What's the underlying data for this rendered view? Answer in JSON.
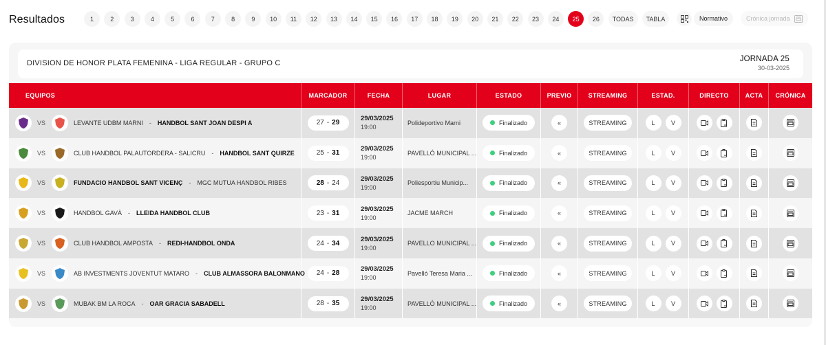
{
  "header": {
    "title": "Resultados",
    "rounds": [
      "1",
      "2",
      "3",
      "4",
      "5",
      "6",
      "7",
      "8",
      "9",
      "10",
      "11",
      "12",
      "13",
      "14",
      "15",
      "16",
      "17",
      "18",
      "19",
      "20",
      "21",
      "22",
      "23",
      "24",
      "25",
      "26"
    ],
    "active_round": "25",
    "todas_label": "TODAS",
    "tabla_label": "TABLA",
    "normativo_label": "Normativo",
    "cronica_jornada_label": "Crónica jornada"
  },
  "competition": {
    "title": "DIVISION DE HONOR PLATA FEMENINA - LIGA REGULAR - GRUPO C",
    "jornada_label": "JORNADA 25",
    "jornada_date": "30-03-2025"
  },
  "colors": {
    "accent": "#e3001b",
    "status_finished": "#3ecf7f"
  },
  "table": {
    "columns": [
      "EQUIPOS",
      "MARCADOR",
      "FECHA",
      "LUGAR",
      "ESTADO",
      "PREVIO",
      "STREAMING",
      "ESTAD.",
      "DIRECTO",
      "ACTA",
      "CRÓNICA"
    ],
    "vs_label": "VS",
    "dash": "-",
    "streaming_label": "STREAMING",
    "local_label": "L",
    "visitor_label": "V",
    "rows": [
      {
        "home": "LEVANTE UDBM MARNI",
        "away": "HANDBOL SANT JOAN DESPI A",
        "home_score": "27",
        "away_score": "29",
        "winner": "away",
        "date": "29/03/2025",
        "time": "19:00",
        "place": "Polideportivo Marni",
        "status": "Finalizado",
        "home_crest_color": "#6a2c8a",
        "away_crest_color": "#e8544a"
      },
      {
        "home": "CLUB HANDBOL PALAUTORDERA - SALICRU",
        "away": "HANDBOL SANT QUIRZE",
        "home_score": "25",
        "away_score": "31",
        "winner": "away",
        "date": "29/03/2025",
        "time": "19:00",
        "place": "PAVELLÓ MUNICIPAL ...",
        "status": "Finalizado",
        "home_crest_color": "#4a8a3c",
        "away_crest_color": "#9a6a2a"
      },
      {
        "home": "FUNDACIO HANDBOL SANT VICENÇ",
        "away": "MGC MUTUA HANDBOL RIBES",
        "home_score": "28",
        "away_score": "24",
        "winner": "home",
        "date": "29/03/2025",
        "time": "19:00",
        "place": "Poliesportiu Municip...",
        "status": "Finalizado",
        "home_crest_color": "#e8b818",
        "away_crest_color": "#c8b020"
      },
      {
        "home": "HANDBOL GAVÀ",
        "away": "LLEIDA HANDBOL CLUB",
        "home_score": "23",
        "away_score": "31",
        "winner": "away",
        "date": "29/03/2025",
        "time": "19:00",
        "place": "JACME MARCH",
        "status": "Finalizado",
        "home_crest_color": "#d8a020",
        "away_crest_color": "#1a1a1a"
      },
      {
        "home": "CLUB HANDBOL AMPOSTA",
        "away": "REDI-HANDBOL ONDA",
        "home_score": "24",
        "away_score": "34",
        "winner": "away",
        "date": "29/03/2025",
        "time": "19:00",
        "place": "PAVELLO MUNICIPAL ...",
        "status": "Finalizado",
        "home_crest_color": "#c8a830",
        "away_crest_color": "#d86020"
      },
      {
        "home": "AB INVESTMENTS JOVENTUT MATARO",
        "away": "CLUB ALMASSORA BALONMANO",
        "home_score": "24",
        "away_score": "28",
        "winner": "away",
        "date": "29/03/2025",
        "time": "19:00",
        "place": "Pavelló Teresa Maria ...",
        "status": "Finalizado",
        "home_crest_color": "#e8c020",
        "away_crest_color": "#3a8ac8"
      },
      {
        "home": "MUBAK BM LA ROCA",
        "away": "OAR GRACIA SABADELL",
        "home_score": "28",
        "away_score": "35",
        "winner": "away",
        "date": "29/03/2025",
        "time": "19:00",
        "place": "PAVELLÓ MUNICIPAL ...",
        "status": "Finalizado",
        "home_crest_color": "#c89a30",
        "away_crest_color": "#5a9a5a"
      }
    ]
  }
}
